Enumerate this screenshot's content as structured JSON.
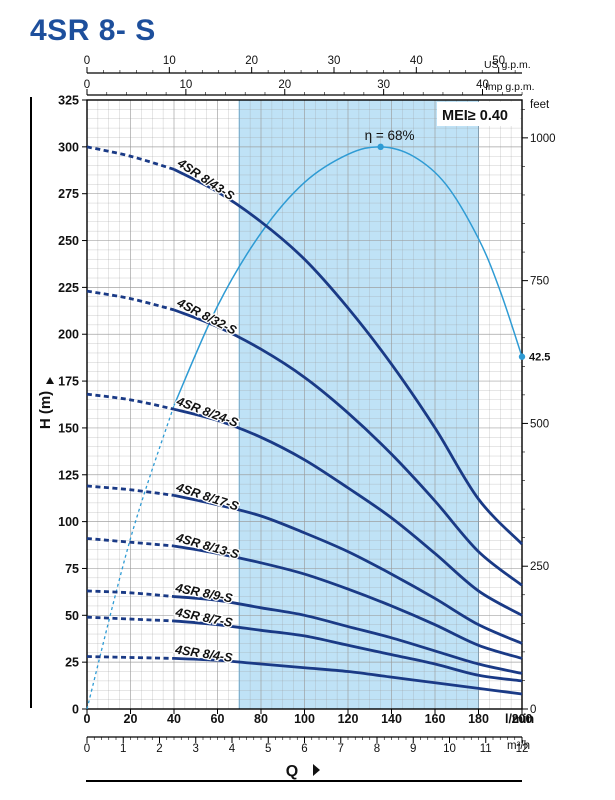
{
  "title": "4SR 8- S",
  "mei_label": "MEI≥ 0.40",
  "colors": {
    "title": "#1d4f9c",
    "curve": "#1a3a86",
    "efficiency": "#2e9bd4",
    "band": "#bfe2f6",
    "grid": "#9a9a9a",
    "axis": "#000000"
  },
  "chart_data": {
    "type": "line",
    "xlabel": "Q",
    "ylabel": "H (m)",
    "xlim": [
      0,
      200
    ],
    "ylim": [
      0,
      325
    ],
    "x_unit": "l/min",
    "x_ticks": [
      0,
      20,
      40,
      60,
      80,
      100,
      120,
      140,
      160,
      180,
      200
    ],
    "y_ticks": [
      0,
      25,
      50,
      75,
      100,
      125,
      150,
      175,
      200,
      225,
      250,
      275,
      300,
      325
    ],
    "top_axis_us": {
      "unit": "US g.p.m.",
      "ticks": [
        0,
        10,
        20,
        30,
        40,
        50
      ]
    },
    "top_axis_imp": {
      "unit": "Imp g.p.m.",
      "ticks": [
        0,
        10,
        20,
        30,
        40
      ]
    },
    "bottom_axis_m3h": {
      "unit": "m³/h",
      "ticks": [
        0,
        1,
        2,
        3,
        4,
        5,
        6,
        7,
        8,
        9,
        10,
        11,
        12
      ]
    },
    "right_axis_feet": {
      "unit": "feet",
      "ticks": [
        0,
        250,
        500,
        750,
        1000
      ]
    },
    "recommended_range": [
      70,
      180
    ],
    "series": [
      {
        "name": "4SR 8/43-S",
        "x": [
          0,
          20,
          40,
          60,
          80,
          100,
          120,
          140,
          160,
          180,
          200
        ],
        "y": [
          300,
          295,
          288,
          276,
          260,
          240,
          214,
          184,
          150,
          112,
          88
        ]
      },
      {
        "name": "4SR 8/32-S",
        "x": [
          0,
          20,
          40,
          60,
          80,
          100,
          120,
          140,
          160,
          180,
          200
        ],
        "y": [
          223,
          219,
          213,
          204,
          192,
          177,
          158,
          136,
          111,
          84,
          66
        ]
      },
      {
        "name": "4SR 8/24-S",
        "x": [
          0,
          20,
          40,
          60,
          80,
          100,
          120,
          140,
          160,
          180,
          200
        ],
        "y": [
          168,
          165,
          160,
          154,
          145,
          133,
          118,
          102,
          83,
          63,
          50
        ]
      },
      {
        "name": "4SR 8/17-S",
        "x": [
          0,
          20,
          40,
          60,
          80,
          100,
          120,
          140,
          160,
          180,
          200
        ],
        "y": [
          119,
          117,
          114,
          109,
          103,
          94,
          84,
          72,
          59,
          45,
          35
        ]
      },
      {
        "name": "4SR 8/13-S",
        "x": [
          0,
          20,
          40,
          60,
          80,
          100,
          120,
          140,
          160,
          180,
          200
        ],
        "y": [
          91,
          89,
          87,
          83,
          78,
          72,
          64,
          55,
          45,
          34,
          27
        ]
      },
      {
        "name": "4SR 8/9-S",
        "x": [
          0,
          20,
          40,
          60,
          80,
          100,
          120,
          140,
          160,
          180,
          200
        ],
        "y": [
          63,
          62,
          60,
          58,
          54,
          50,
          44,
          38,
          31,
          24,
          19
        ]
      },
      {
        "name": "4SR 8/7-S",
        "x": [
          0,
          20,
          40,
          60,
          80,
          100,
          120,
          140,
          160,
          180,
          200
        ],
        "y": [
          49,
          48,
          47,
          45,
          42,
          39,
          34,
          29,
          24,
          18,
          15
        ]
      },
      {
        "name": "4SR 8/4-S",
        "x": [
          0,
          20,
          40,
          60,
          80,
          100,
          120,
          140,
          160,
          180,
          200
        ],
        "y": [
          28,
          27.5,
          27,
          26,
          24,
          22,
          20,
          17,
          14,
          11,
          8
        ]
      }
    ],
    "efficiency_curve": {
      "x": [
        0,
        20,
        40,
        60,
        80,
        100,
        120,
        135,
        150,
        165,
        180,
        190,
        200
      ],
      "y": [
        0,
        91,
        162,
        215,
        254,
        281,
        296,
        300,
        295,
        280,
        251,
        223,
        188
      ],
      "peak_label": "η = 68%",
      "peak": [
        135,
        300
      ],
      "end_label": "42.5",
      "end": [
        200,
        188
      ]
    }
  }
}
